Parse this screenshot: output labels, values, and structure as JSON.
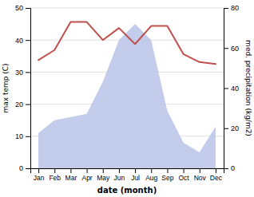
{
  "chart_data": {
    "type": "line",
    "xlabel": "date (month)",
    "ylabel": "max temp (C)",
    "y2label": "med. precipitation (kg/m2)",
    "categories": [
      "Jan",
      "Feb",
      "Mar",
      "Apr",
      "May",
      "Jun",
      "Jul",
      "Aug",
      "Sep",
      "Oct",
      "Nov",
      "Dec"
    ],
    "series": [
      {
        "type": "area",
        "color": "#b8c4e8",
        "values": [
          11,
          15,
          16,
          17,
          27,
          40,
          45,
          40,
          18,
          8,
          5,
          13
        ]
      },
      {
        "color": "#c0504d",
        "axis": "y2",
        "values": [
          54,
          59,
          73,
          73,
          64,
          70,
          62,
          71,
          71,
          57,
          53,
          52
        ]
      }
    ],
    "ylim": [
      0,
      50
    ],
    "yticks": [
      0,
      10,
      20,
      30,
      40,
      50
    ],
    "y2lim": [
      0,
      80
    ],
    "y2ticks": [
      0,
      20,
      40,
      60,
      80
    ],
    "grid": true
  }
}
